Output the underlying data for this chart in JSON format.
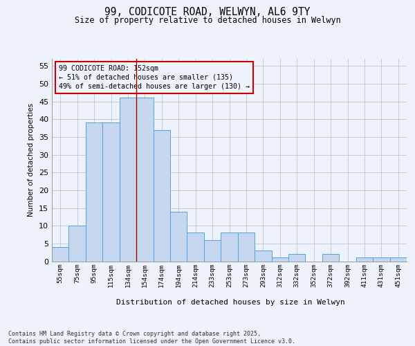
{
  "title1": "99, CODICOTE ROAD, WELWYN, AL6 9TY",
  "title2": "Size of property relative to detached houses in Welwyn",
  "xlabel": "Distribution of detached houses by size in Welwyn",
  "ylabel": "Number of detached properties",
  "categories": [
    "55sqm",
    "75sqm",
    "95sqm",
    "115sqm",
    "134sqm",
    "154sqm",
    "174sqm",
    "194sqm",
    "214sqm",
    "233sqm",
    "253sqm",
    "273sqm",
    "293sqm",
    "312sqm",
    "332sqm",
    "352sqm",
    "372sqm",
    "392sqm",
    "411sqm",
    "431sqm",
    "451sqm"
  ],
  "values": [
    4,
    10,
    39,
    39,
    46,
    46,
    37,
    14,
    8,
    6,
    8,
    8,
    3,
    1,
    2,
    0,
    2,
    0,
    1,
    1,
    1
  ],
  "bar_color": "#c5d8f0",
  "bar_edge_color": "#5a9fd4",
  "vline_x": 4.5,
  "annotation_title": "99 CODICOTE ROAD: 152sqm",
  "annotation_line1": "← 51% of detached houses are smaller (135)",
  "annotation_line2": "49% of semi-detached houses are larger (130) →",
  "vline_color": "#aa0000",
  "annotation_box_edge": "#cc0000",
  "ylim": [
    0,
    57
  ],
  "yticks": [
    0,
    5,
    10,
    15,
    20,
    25,
    30,
    35,
    40,
    45,
    50,
    55
  ],
  "footer": "Contains HM Land Registry data © Crown copyright and database right 2025.\nContains public sector information licensed under the Open Government Licence v3.0.",
  "background_color": "#eef2fa",
  "grid_color": "#b8c8e0"
}
